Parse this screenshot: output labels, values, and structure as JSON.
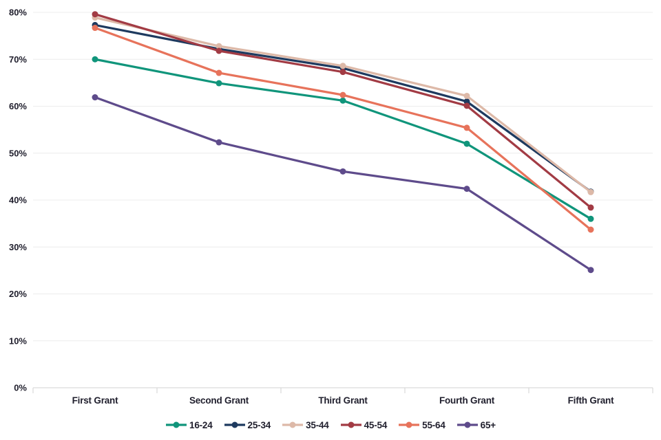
{
  "chart_data": {
    "type": "line",
    "title": "",
    "categories": [
      "First Grant",
      "Second Grant",
      "Third Grant",
      "Fourth Grant",
      "Fifth Grant"
    ],
    "series": [
      {
        "name": "16-24",
        "color": "#10957B",
        "values": [
          70.0,
          64.9,
          61.2,
          52.0,
          36.0
        ]
      },
      {
        "name": "25-34",
        "color": "#1E3A5F",
        "values": [
          77.3,
          72.2,
          68.1,
          61.0,
          41.8
        ]
      },
      {
        "name": "35-44",
        "color": "#DDB9A8",
        "values": [
          78.9,
          72.8,
          68.6,
          62.2,
          41.7
        ]
      },
      {
        "name": "45-54",
        "color": "#A23B44",
        "values": [
          79.6,
          71.8,
          67.3,
          60.1,
          38.4
        ]
      },
      {
        "name": "55-64",
        "color": "#E7735B",
        "values": [
          76.7,
          67.1,
          62.4,
          55.4,
          33.7
        ]
      },
      {
        "name": "65+",
        "color": "#5E4B8B",
        "values": [
          61.9,
          52.3,
          46.1,
          42.4,
          25.1
        ]
      }
    ],
    "xlabel": "",
    "ylabel": "",
    "ylim": [
      0,
      80
    ],
    "y_tick_step": 10,
    "y_tick_suffix": "%",
    "y_tick_labels": [
      "0%",
      "10%",
      "20%",
      "30%",
      "40%",
      "50%",
      "60%",
      "70%",
      "80%"
    ],
    "grid": "horizontal",
    "legend_position": "bottom"
  },
  "style": {
    "text_color": "#21202E",
    "gridline_color": "#ECECEC",
    "axis_color": "#D9D9D9",
    "background_color": "#FFFFFF"
  }
}
